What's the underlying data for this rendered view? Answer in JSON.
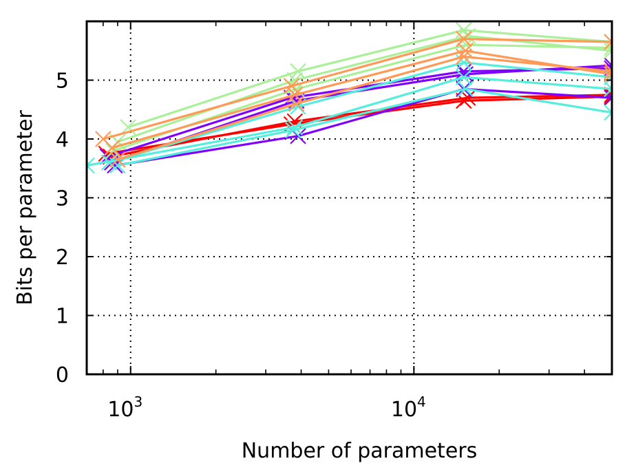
{
  "chart_data": {
    "type": "line",
    "xlabel": "Number of parameters",
    "ylabel": "Bits per parameter",
    "x_scale": "log",
    "xlim": [
      700,
      50000
    ],
    "ylim": [
      0,
      6
    ],
    "x_ticks": [
      {
        "value": 1000,
        "base": "10",
        "exp": "3"
      },
      {
        "value": 10000,
        "base": "10",
        "exp": "4"
      }
    ],
    "y_ticks": [
      0,
      1,
      2,
      3,
      4,
      5
    ],
    "grid": true,
    "marker": "x",
    "series": [
      {
        "color": "#ff0000",
        "points": [
          [
            820,
            3.75
          ],
          [
            3700,
            4.25
          ],
          [
            15000,
            4.65
          ],
          [
            50000,
            4.72
          ]
        ]
      },
      {
        "color": "#ff0000",
        "points": [
          [
            850,
            3.7
          ],
          [
            3800,
            4.3
          ],
          [
            15500,
            4.7
          ],
          [
            50000,
            4.75
          ]
        ]
      },
      {
        "color": "#8000ff",
        "points": [
          [
            880,
            3.55
          ],
          [
            3900,
            4.05
          ],
          [
            15000,
            4.85
          ],
          [
            50000,
            4.7
          ]
        ]
      },
      {
        "color": "#8000ff",
        "points": [
          [
            830,
            3.7
          ],
          [
            3700,
            4.7
          ],
          [
            15000,
            5.15
          ],
          [
            50000,
            5.2
          ]
        ]
      },
      {
        "color": "#8000ff",
        "points": [
          [
            860,
            3.6
          ],
          [
            3850,
            4.65
          ],
          [
            15200,
            5.1
          ],
          [
            50000,
            5.25
          ]
        ]
      },
      {
        "color": "#55eedd",
        "points": [
          [
            700,
            3.55
          ],
          [
            3800,
            4.2
          ],
          [
            15000,
            5.05
          ],
          [
            50000,
            4.85
          ]
        ]
      },
      {
        "color": "#55eedd",
        "points": [
          [
            900,
            3.55
          ],
          [
            3750,
            4.15
          ],
          [
            15200,
            4.85
          ],
          [
            50000,
            4.45
          ]
        ]
      },
      {
        "color": "#55eedd",
        "points": [
          [
            840,
            3.6
          ],
          [
            3900,
            4.55
          ],
          [
            15000,
            5.3
          ],
          [
            50000,
            5.05
          ]
        ]
      },
      {
        "color": "#aaf099",
        "points": [
          [
            980,
            4.2
          ],
          [
            3900,
            5.15
          ],
          [
            15000,
            5.85
          ],
          [
            50000,
            5.65
          ]
        ]
      },
      {
        "color": "#aaf099",
        "points": [
          [
            900,
            3.95
          ],
          [
            3800,
            5.0
          ],
          [
            15500,
            5.75
          ],
          [
            50000,
            5.5
          ]
        ]
      },
      {
        "color": "#aaf099",
        "points": [
          [
            870,
            3.8
          ],
          [
            3850,
            4.85
          ],
          [
            15300,
            5.6
          ],
          [
            50000,
            5.55
          ]
        ]
      },
      {
        "color": "#ff9955",
        "points": [
          [
            800,
            4.0
          ],
          [
            3700,
            4.9
          ],
          [
            15000,
            5.7
          ],
          [
            50000,
            5.65
          ]
        ]
      },
      {
        "color": "#ff9955",
        "points": [
          [
            860,
            3.85
          ],
          [
            3800,
            4.75
          ],
          [
            15200,
            5.5
          ],
          [
            50000,
            5.1
          ]
        ]
      },
      {
        "color": "#ff9955",
        "points": [
          [
            900,
            3.65
          ],
          [
            3850,
            4.6
          ],
          [
            15000,
            5.4
          ],
          [
            50000,
            5.15
          ]
        ]
      }
    ]
  }
}
